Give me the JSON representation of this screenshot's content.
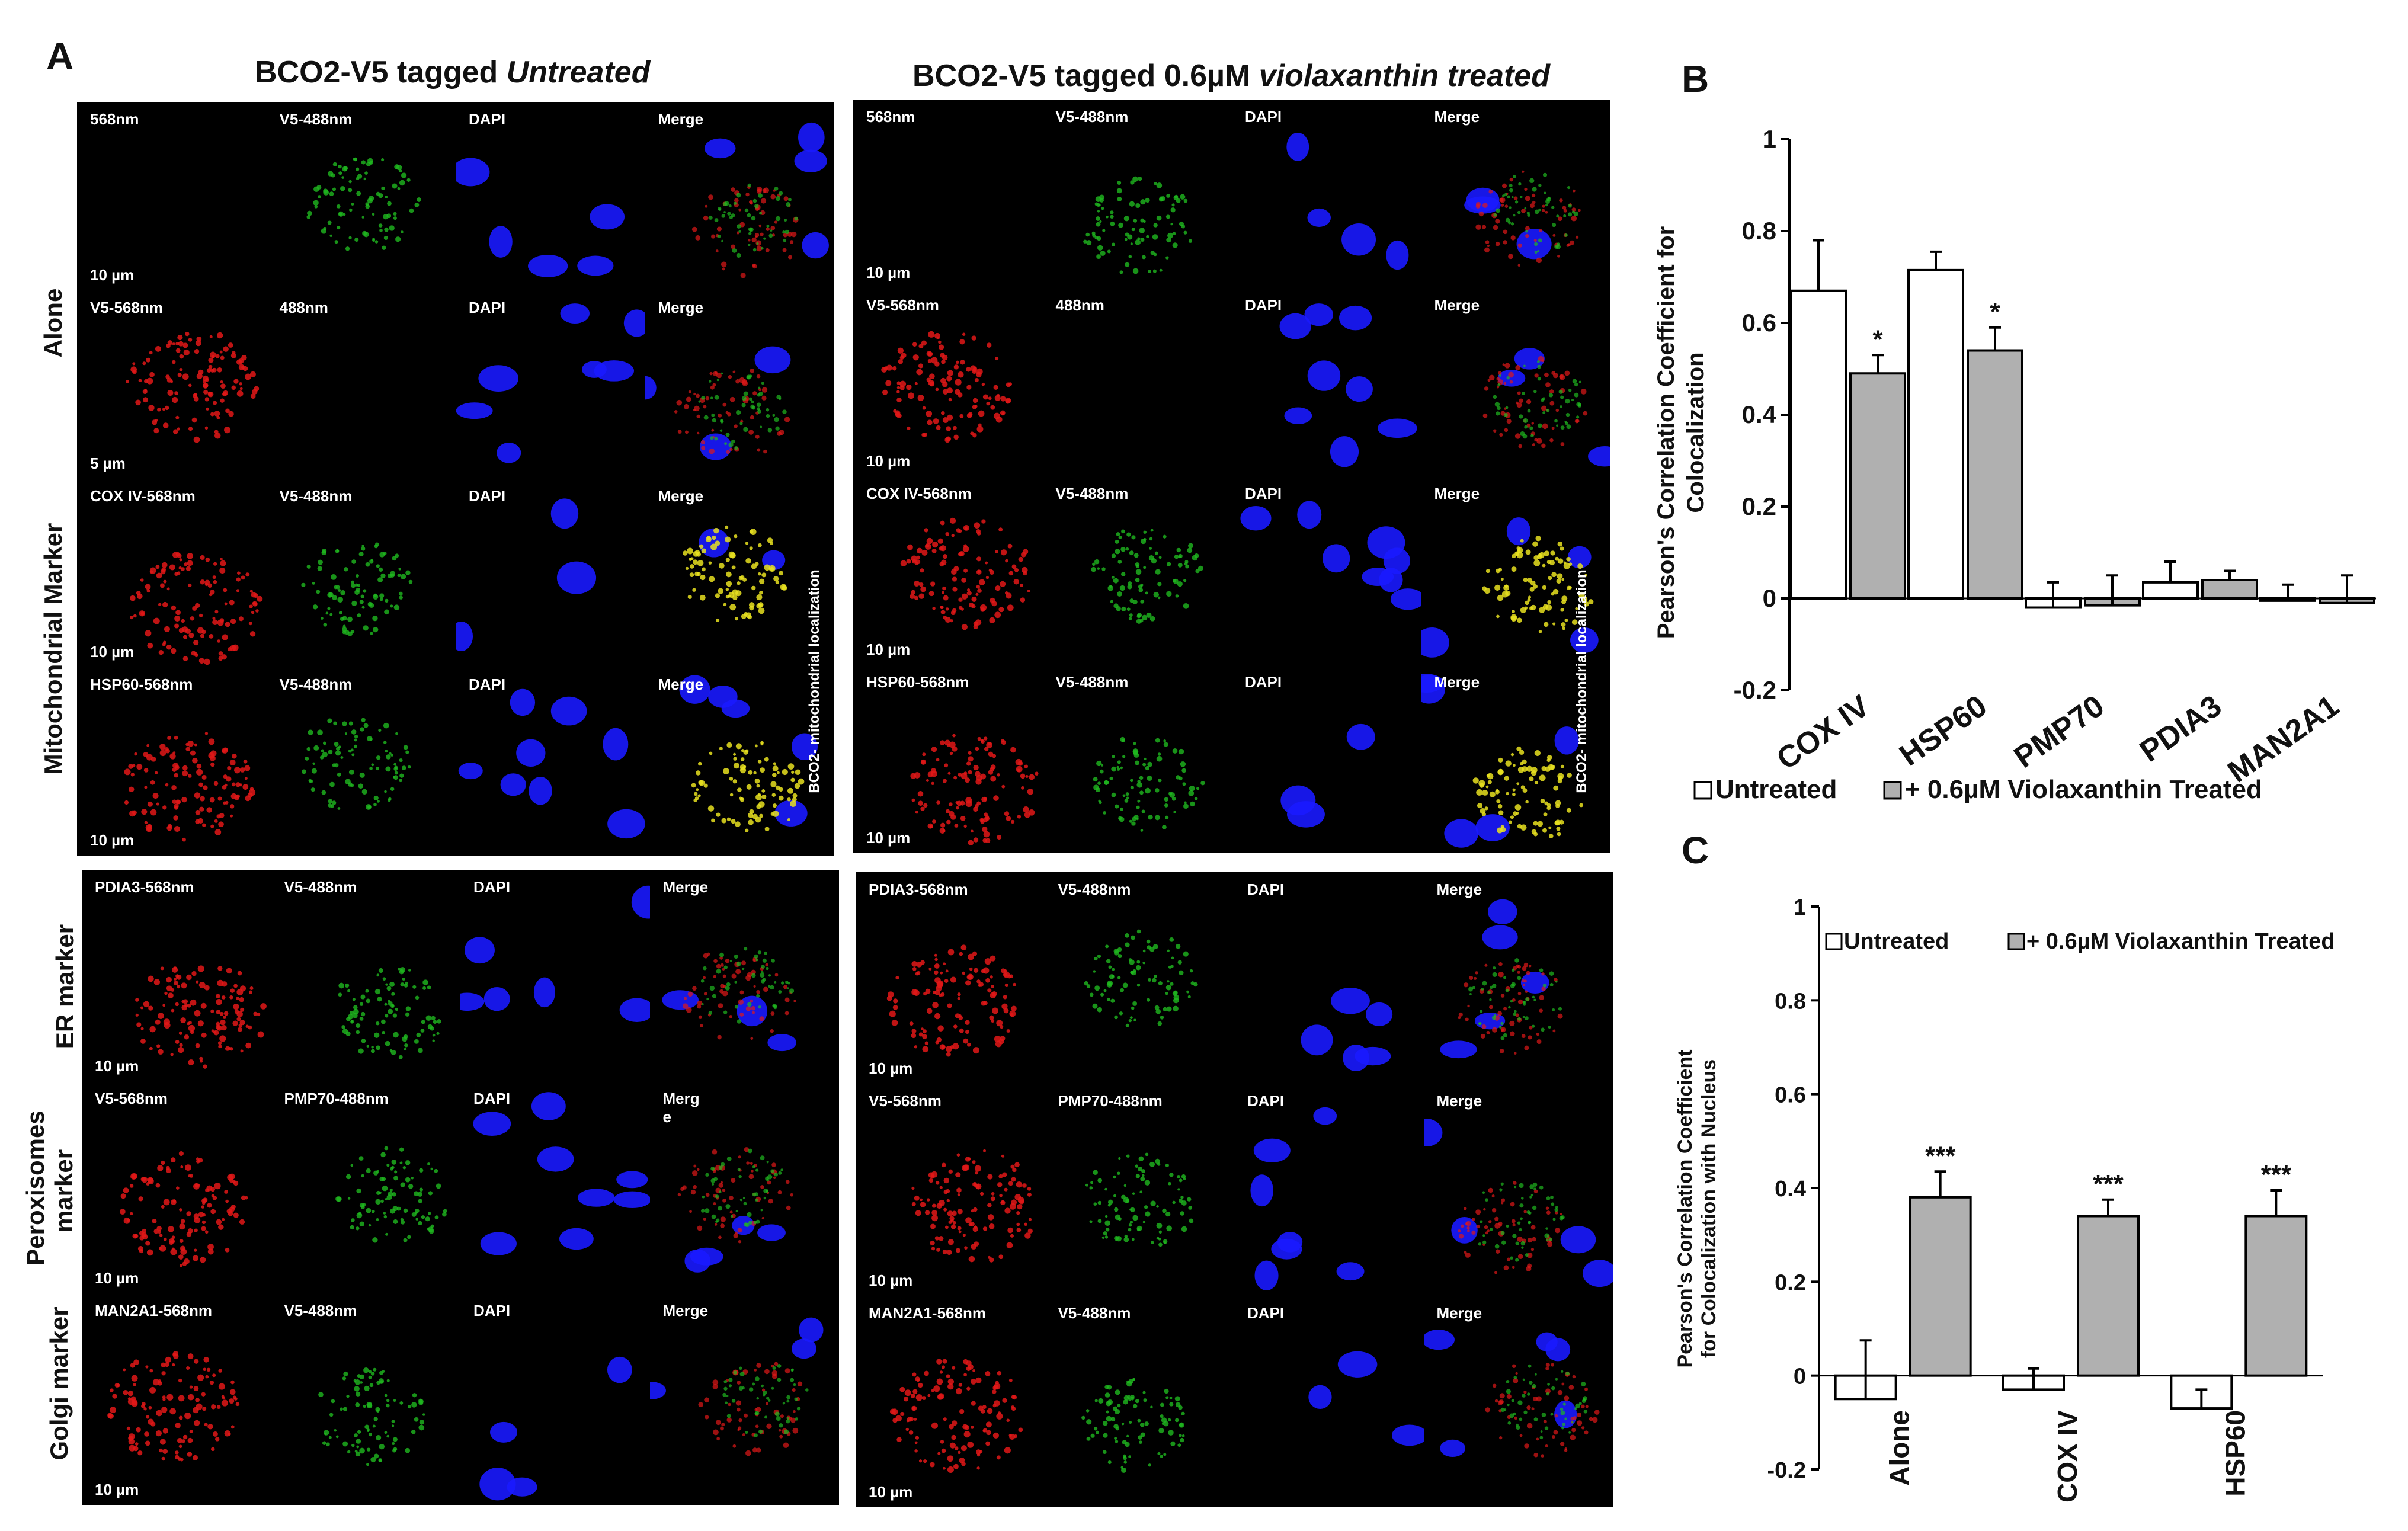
{
  "panel_labels": {
    "a": "A",
    "b": "B",
    "c": "C"
  },
  "microscopy": {
    "untreated_title": "BCO2-V5 tagged ",
    "untreated_title_em": "Untreated",
    "treated_title": "BCO2-V5 tagged 0.6µM ",
    "treated_title_em": "violaxanthin treated",
    "row_groups": {
      "alone": "Alone",
      "mito": "Mitochondrial  Marker",
      "er": "ER marker",
      "perox_1": "Peroxisomes",
      "perox_2": "marker",
      "golgi": "Golgi  marker"
    },
    "side_note": "BCO2- mitochondrial localization",
    "untreated_rows": [
      {
        "labels": [
          "568nm",
          "V5-488nm",
          "DAPI",
          "Merge"
        ],
        "scale": "10 µm"
      },
      {
        "labels": [
          "V5-568nm",
          "488nm",
          "DAPI",
          "Merge"
        ],
        "scale": "5 µm"
      },
      {
        "labels": [
          "COX IV-568nm",
          "V5-488nm",
          "DAPI",
          "Merge"
        ],
        "scale": "10 µm"
      },
      {
        "labels": [
          "HSP60-568nm",
          "V5-488nm",
          "DAPI",
          "Merge"
        ],
        "scale": "10 µm"
      },
      {
        "labels": [
          "PDIA3-568nm",
          "V5-488nm",
          "DAPI",
          "Merge"
        ],
        "scale": "10 µm"
      },
      {
        "labels": [
          "V5-568nm",
          "PMP70-488nm",
          "DAPI",
          "Merg\ne"
        ],
        "scale": "10 µm"
      },
      {
        "labels": [
          "MAN2A1-568nm",
          "V5-488nm",
          "DAPI",
          "Merge"
        ],
        "scale": "10 µm"
      }
    ],
    "treated_rows": [
      {
        "labels": [
          "568nm",
          "V5-488nm",
          "DAPI",
          "Merge"
        ],
        "scale": "10 µm"
      },
      {
        "labels": [
          "V5-568nm",
          "488nm",
          "DAPI",
          "Merge"
        ],
        "scale": "10 µm"
      },
      {
        "labels": [
          "COX IV-568nm",
          "V5-488nm",
          "DAPI",
          "Merge"
        ],
        "scale": "10 µm"
      },
      {
        "labels": [
          "HSP60-568nm",
          "V5-488nm",
          "DAPI",
          "Merge"
        ],
        "scale": "10 µm"
      },
      {
        "labels": [
          "PDIA3-568nm",
          "V5-488nm",
          "DAPI",
          "Merge"
        ],
        "scale": "10 µm"
      },
      {
        "labels": [
          "V5-568nm",
          "PMP70-488nm",
          "DAPI",
          "Merge"
        ],
        "scale": "10 µm"
      },
      {
        "labels": [
          "MAN2A1-568nm",
          "V5-488nm",
          "DAPI",
          "Merge"
        ],
        "scale": "10 µm"
      }
    ],
    "channel_colors": {
      "red": "#e01818",
      "green": "#1fb81f",
      "blue": "#1a1aff",
      "yellow": "#e8e020"
    }
  },
  "chart_data": [
    {
      "type": "bar",
      "panel": "B",
      "ylabel": "Pearson's  Correlation Coefficient for Colocalization",
      "ylim": [
        -0.2,
        1
      ],
      "yticks": [
        "1",
        "0.8",
        "0.6",
        "0.4",
        "0.2",
        "0",
        "-0.2"
      ],
      "categories": [
        "COX IV",
        "HSP60",
        "PMP70",
        "PDIA3",
        "MAN2A1"
      ],
      "series": [
        {
          "name": "Untreated",
          "color": "#ffffff",
          "values": [
            0.67,
            0.715,
            -0.02,
            0.035,
            -0.005
          ],
          "errors": [
            0.11,
            0.04,
            0.055,
            0.045,
            0.035
          ]
        },
        {
          "name": "+ 0.6µM Violaxanthin Treated",
          "color": "#b0b0b0",
          "values": [
            0.49,
            0.54,
            -0.015,
            0.04,
            -0.01
          ],
          "errors": [
            0.04,
            0.05,
            0.065,
            0.02,
            0.06
          ]
        }
      ],
      "significance": [
        "*",
        "*",
        "",
        "",
        ""
      ],
      "legend": {
        "untreated": "Untreated",
        "treated": "+ 0.6µM Violaxanthin Treated"
      },
      "legend_position": "bottom"
    },
    {
      "type": "bar",
      "panel": "C",
      "ylabel_line1": "Pearson's Correlation Coefficient",
      "ylabel_line2": "for Colocalization with Nucleus",
      "ylim": [
        -0.2,
        1
      ],
      "yticks": [
        "1",
        "0.8",
        "0.6",
        "0.4",
        "0.2",
        "0",
        "-0.2"
      ],
      "categories": [
        "Alone",
        "COX IV",
        "HSP60"
      ],
      "series": [
        {
          "name": "Untreated",
          "color": "#ffffff",
          "values": [
            -0.05,
            -0.03,
            -0.07
          ],
          "errors": [
            0.125,
            0.045,
            0.04
          ]
        },
        {
          "name": "+ 0.6µM Violaxanthin Treated",
          "color": "#b0b0b0",
          "values": [
            0.38,
            0.34,
            0.34
          ],
          "errors": [
            0.055,
            0.035,
            0.055
          ]
        }
      ],
      "significance": [
        "***",
        "***",
        "***"
      ],
      "legend": {
        "untreated": "Untreated",
        "treated": "+ 0.6µM Violaxanthin Treated"
      },
      "legend_position": "top"
    }
  ]
}
